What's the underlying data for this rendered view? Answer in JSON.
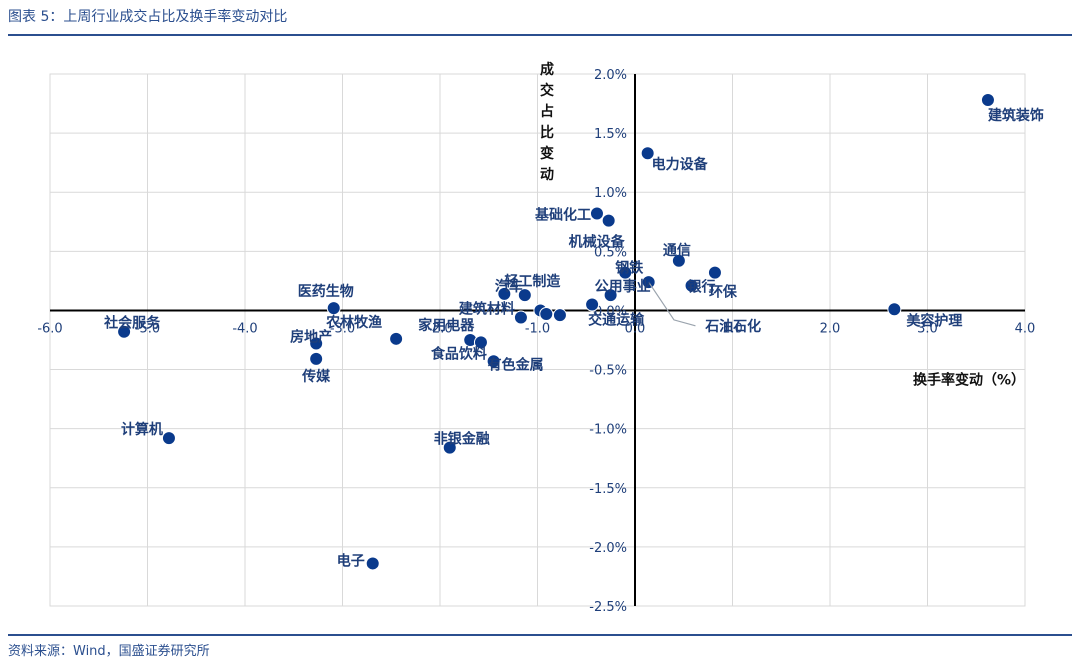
{
  "header": {
    "title": "图表 5：上周行业成交占比及换手率变动对比"
  },
  "footer": {
    "source": "资料来源：Wind，国盛证券研究所"
  },
  "chart_data": {
    "type": "scatter",
    "title": "图表 5：上周行业成交占比及换手率变动对比",
    "xlabel": "换手率变动（%）",
    "ylabel": "成交占比变动",
    "xlim": [
      -6.0,
      4.0
    ],
    "ylim": [
      -2.5,
      2.0
    ],
    "x_ticks": [
      "-6.0",
      "-5.0",
      "-4.0",
      "-3.0",
      "-2.0",
      "-1.0",
      "0.0",
      "1.0",
      "2.0",
      "3.0",
      "4.0"
    ],
    "y_ticks": [
      "2.0%",
      "1.5%",
      "1.0%",
      "0.5%",
      "0.0%",
      "-0.5%",
      "-1.0%",
      "-1.5%",
      "-2.0%",
      "-2.5%"
    ],
    "grid": true,
    "marker_color": "#0a3a8c",
    "points": [
      {
        "label": "建筑装饰",
        "x": 3.62,
        "y": 1.78
      },
      {
        "label": "美容护理",
        "x": 2.66,
        "y": 0.01
      },
      {
        "label": "环保",
        "x": 0.82,
        "y": 0.32
      },
      {
        "label": "通信",
        "x": 0.45,
        "y": 0.42
      },
      {
        "label": "银行",
        "x": 0.58,
        "y": 0.21
      },
      {
        "label": "石油石化",
        "x": 0.14,
        "y": 0.24
      },
      {
        "label": "电力设备",
        "x": 0.13,
        "y": 1.33
      },
      {
        "label": "基础化工",
        "x": -0.39,
        "y": 0.82
      },
      {
        "label": "机械设备",
        "x": -0.27,
        "y": 0.76
      },
      {
        "label": "钢铁",
        "x": -0.1,
        "y": 0.32
      },
      {
        "label": "公用事业",
        "x": -0.25,
        "y": 0.13
      },
      {
        "label": "交通运输",
        "x": -0.44,
        "y": 0.05
      },
      {
        "label": "轻工制造",
        "x": -1.34,
        "y": 0.14
      },
      {
        "label": "汽车",
        "x": -1.13,
        "y": 0.13
      },
      {
        "label": "建筑材料",
        "x": -1.17,
        "y": -0.06
      },
      {
        "label": "有色金属",
        "x": -1.45,
        "y": -0.43
      },
      {
        "label": "家用电器",
        "x": -1.69,
        "y": -0.25
      },
      {
        "label": "食品饮料",
        "x": -1.58,
        "y": -0.27
      },
      {
        "label": "非银金融",
        "x": -1.9,
        "y": -1.16
      },
      {
        "label": "农林牧渔",
        "x": -2.45,
        "y": -0.24
      },
      {
        "label": "医药生物",
        "x": -3.09,
        "y": 0.02
      },
      {
        "label": "房地产",
        "x": -3.27,
        "y": -0.28
      },
      {
        "label": "传媒",
        "x": -3.27,
        "y": -0.41
      },
      {
        "label": "社会服务",
        "x": -5.24,
        "y": -0.18
      },
      {
        "label": "计算机",
        "x": -4.78,
        "y": -1.08
      },
      {
        "label": "电子",
        "x": -2.69,
        "y": -2.14
      },
      {
        "label": "",
        "x": -0.97,
        "y": 0.0
      },
      {
        "label": "",
        "x": -0.91,
        "y": -0.03
      },
      {
        "label": "",
        "x": -0.77,
        "y": -0.04
      }
    ]
  }
}
